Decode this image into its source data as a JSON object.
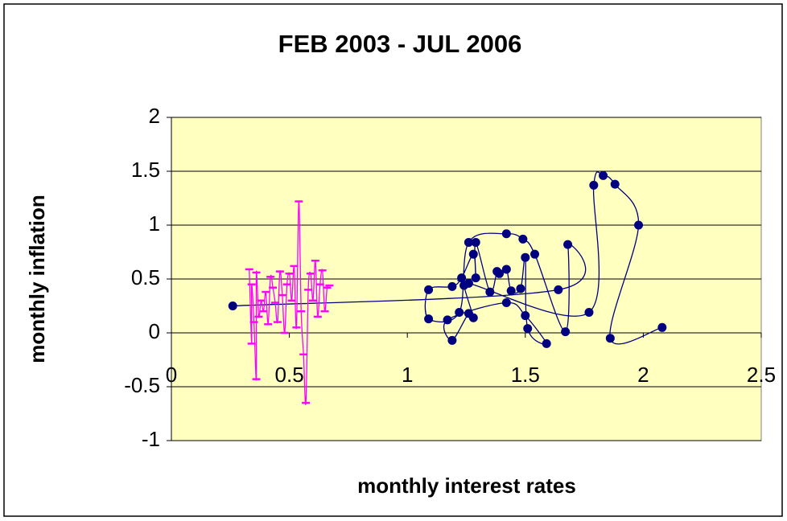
{
  "chart_data": {
    "type": "scatter",
    "title": "FEB 2003 - JUL 2006",
    "xlabel": "monthly interest rates",
    "ylabel": "monthly inflation",
    "xlim": [
      0,
      2.5
    ],
    "ylim": [
      -1,
      2
    ],
    "xticks": [
      0,
      0.5,
      1,
      1.5,
      2,
      2.5
    ],
    "yticks": [
      -1,
      -0.5,
      0,
      0.5,
      1,
      1.5,
      2
    ],
    "grid": true,
    "smooth": true,
    "series": [
      {
        "color": "#000080",
        "marker": "circle",
        "x": [
          0.26,
          1.64,
          1.68,
          1.67,
          1.54,
          1.49,
          1.42,
          1.26,
          1.22,
          1.09,
          1.09,
          1.19,
          1.23,
          1.28,
          1.29,
          1.29,
          1.35,
          1.38,
          1.39,
          1.42,
          1.44,
          1.48,
          1.5,
          1.51,
          1.59,
          1.5,
          1.42,
          1.17,
          1.19,
          1.26,
          1.28,
          1.24,
          1.26,
          1.77,
          1.79,
          1.83,
          1.88,
          1.98,
          1.86,
          2.08
        ],
        "values": [
          0.25,
          0.4,
          0.82,
          0.01,
          0.73,
          0.87,
          0.92,
          0.84,
          0.19,
          0.13,
          0.4,
          0.43,
          0.51,
          0.73,
          0.51,
          0.84,
          0.38,
          0.57,
          0.55,
          0.59,
          0.39,
          0.41,
          0.7,
          0.04,
          -0.1,
          0.16,
          0.28,
          0.12,
          -0.07,
          0.18,
          0.14,
          0.44,
          0.46,
          0.19,
          1.37,
          1.46,
          1.38,
          1.0,
          -0.05,
          0.05
        ]
      },
      {
        "color": "#ff00ff",
        "marker": "dash",
        "x": [
          0.33,
          0.34,
          0.34,
          0.35,
          0.36,
          0.36,
          0.37,
          0.38,
          0.39,
          0.4,
          0.41,
          0.42,
          0.43,
          0.44,
          0.45,
          0.46,
          0.47,
          0.48,
          0.49,
          0.5,
          0.51,
          0.52,
          0.53,
          0.54,
          0.55,
          0.56,
          0.57,
          0.58,
          0.59,
          0.6,
          0.61,
          0.62,
          0.63,
          0.64,
          0.65,
          0.66,
          0.67
        ],
        "values": [
          0.59,
          -0.1,
          0.45,
          0.1,
          -0.43,
          0.56,
          0.15,
          0.3,
          0.2,
          0.38,
          0.08,
          0.52,
          0.42,
          0.28,
          0.1,
          0.57,
          0.35,
          0.0,
          0.45,
          0.55,
          0.3,
          0.62,
          0.05,
          1.22,
          0.2,
          -0.2,
          -0.65,
          0.4,
          0.55,
          0.3,
          0.67,
          0.15,
          0.45,
          0.58,
          0.2,
          0.42,
          0.44
        ]
      }
    ]
  }
}
